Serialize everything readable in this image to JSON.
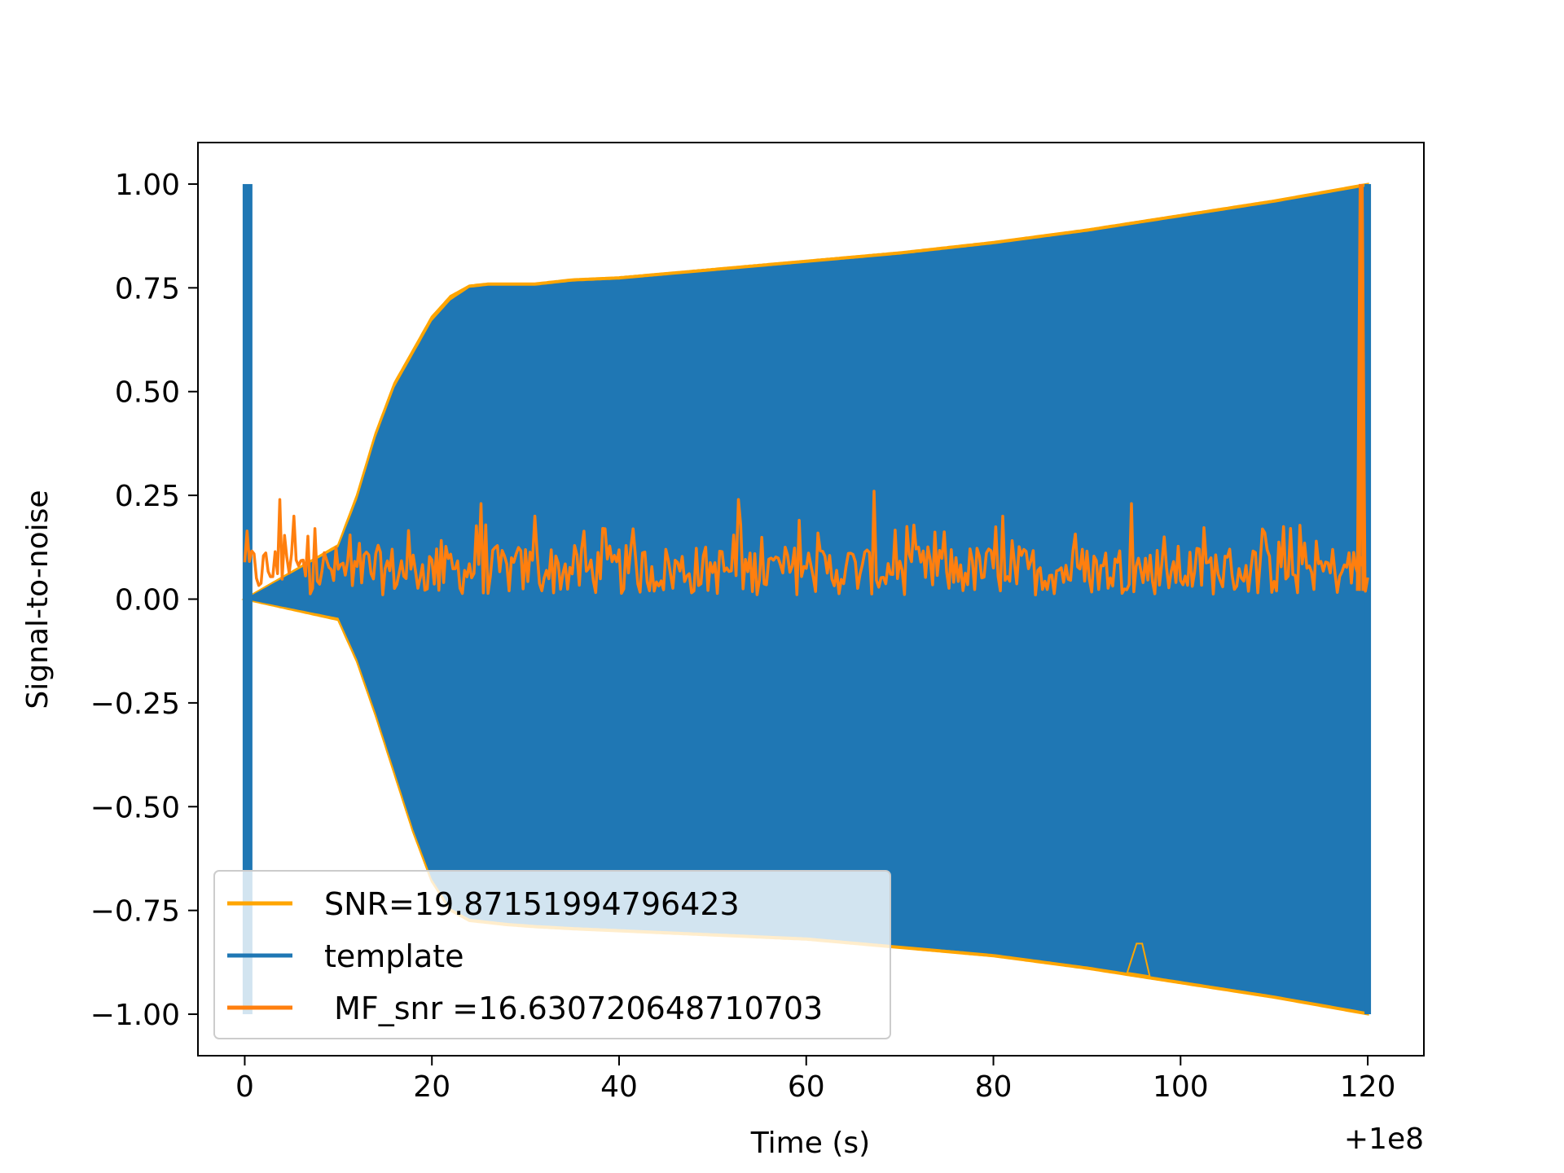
{
  "chart_data": {
    "type": "line",
    "title": "",
    "xlabel": "Time (s)",
    "ylabel": "Signal-to-noise",
    "x_offset_label": "+1e8",
    "xlim": [
      -5,
      126
    ],
    "ylim": [
      -1.1,
      1.1
    ],
    "xticks": [
      0,
      20,
      40,
      60,
      80,
      100,
      120
    ],
    "xtick_labels": [
      "0",
      "20",
      "40",
      "60",
      "80",
      "100",
      "120"
    ],
    "yticks": [
      1.0,
      0.75,
      0.5,
      0.25,
      0.0,
      -0.25,
      -0.5,
      -0.75,
      -1.0
    ],
    "ytick_labels": [
      "1.00",
      "0.75",
      "0.50",
      "0.25",
      "0.00",
      "−0.25",
      "−0.50",
      "−0.75",
      "−1.00"
    ],
    "grid": false,
    "legend_position": "lower-left",
    "series": [
      {
        "name": "SNR=19.87151994796423",
        "color": "#ffa500",
        "kind": "envelope",
        "x": [
          0,
          10,
          12,
          14,
          16,
          18,
          20,
          22,
          24,
          26,
          28,
          31,
          35,
          40,
          50,
          60,
          70,
          80,
          90,
          100,
          110,
          120
        ],
        "upper": [
          0.0,
          0.13,
          0.25,
          0.4,
          0.52,
          0.6,
          0.68,
          0.73,
          0.755,
          0.76,
          0.76,
          0.76,
          0.77,
          0.775,
          0.795,
          0.815,
          0.835,
          0.86,
          0.89,
          0.925,
          0.96,
          1.0
        ],
        "lower": [
          0.0,
          -0.05,
          -0.15,
          -0.28,
          -0.42,
          -0.56,
          -0.68,
          -0.75,
          -0.775,
          -0.78,
          -0.785,
          -0.79,
          -0.795,
          -0.8,
          -0.81,
          -0.82,
          -0.84,
          -0.86,
          -0.89,
          -0.925,
          -0.96,
          -1.0
        ]
      },
      {
        "name": "template",
        "color": "#1f77b4",
        "kind": "filled-envelope",
        "x": [
          0,
          10,
          12,
          14,
          16,
          18,
          20,
          22,
          24,
          26,
          28,
          31,
          35,
          40,
          50,
          60,
          70,
          80,
          90,
          100,
          110,
          120
        ],
        "upper": [
          0.0,
          0.125,
          0.24,
          0.39,
          0.51,
          0.59,
          0.67,
          0.72,
          0.75,
          0.755,
          0.755,
          0.755,
          0.765,
          0.77,
          0.79,
          0.81,
          0.83,
          0.855,
          0.885,
          0.92,
          0.955,
          0.995
        ],
        "lower": [
          0.0,
          -0.045,
          -0.145,
          -0.275,
          -0.415,
          -0.555,
          -0.675,
          -0.745,
          -0.77,
          -0.775,
          -0.78,
          -0.785,
          -0.79,
          -0.795,
          -0.805,
          -0.815,
          -0.835,
          -0.855,
          -0.885,
          -0.92,
          -0.955,
          -0.995
        ],
        "start_spike": {
          "x": 0.3,
          "ymin": -1.0,
          "ymax": 1.0
        },
        "end_spike": {
          "x": 120.0,
          "ymin": -1.0,
          "ymax": 1.0
        },
        "dip": {
          "x": 95.5,
          "y": -0.83
        }
      },
      {
        "name": " MF_snr =16.630720648710703",
        "color": "#ff7f0e",
        "kind": "noise",
        "base_min": 0.01,
        "base_max": 0.13,
        "peaks": [
          {
            "x": 3.8,
            "y": 0.24
          },
          {
            "x": 5.2,
            "y": 0.2
          },
          {
            "x": 7.5,
            "y": 0.17
          },
          {
            "x": 25.3,
            "y": 0.23
          },
          {
            "x": 52.8,
            "y": 0.24
          },
          {
            "x": 67.3,
            "y": 0.26
          },
          {
            "x": 94.7,
            "y": 0.23
          },
          {
            "x": 31.0,
            "y": 0.2
          },
          {
            "x": 59.3,
            "y": 0.19
          },
          {
            "x": 80.9,
            "y": 0.2
          }
        ],
        "end_spike": {
          "x": 119.3,
          "y": 1.0
        }
      }
    ]
  }
}
